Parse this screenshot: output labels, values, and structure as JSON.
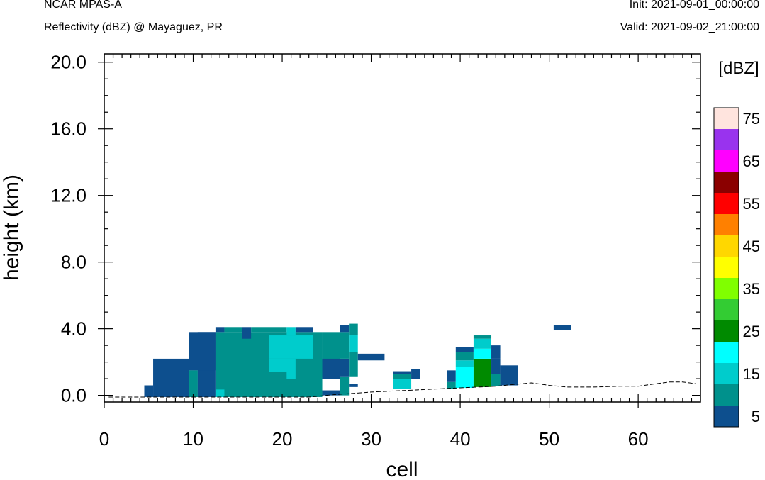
{
  "header": {
    "left_line1": "NCAR MPAS-A",
    "left_line2": "Reflectivity (dBZ) @ Mayaguez, PR",
    "right_line1": "Init: 2021-09-01_00:00:00",
    "right_line2": "Valid: 2021-09-02_21:00:00"
  },
  "chart_data": {
    "type": "heatmap",
    "xlabel": "cell",
    "ylabel": "height (km)",
    "xlim": [
      0,
      67
    ],
    "ylim": [
      -0.4,
      20.5
    ],
    "x_ticks": [
      0,
      10,
      20,
      30,
      40,
      50,
      60
    ],
    "x_tick_labels": [
      "0",
      "10",
      "20",
      "30",
      "40",
      "50",
      "60"
    ],
    "y_ticks": [
      0,
      4,
      8,
      12,
      16,
      20
    ],
    "y_tick_labels": [
      "0.0",
      "4.0",
      "8.0",
      "12.0",
      "16.0",
      "20.0"
    ],
    "grid": false,
    "colorbar": {
      "title": "[dBZ]",
      "levels": [
        5,
        10,
        15,
        20,
        25,
        30,
        35,
        40,
        45,
        50,
        55,
        60,
        65,
        70,
        75
      ],
      "tick_labels": [
        "5",
        "15",
        "25",
        "35",
        "45",
        "55",
        "65",
        "75"
      ],
      "colors": [
        "#0d4f8e",
        "#00918c",
        "#00cccc",
        "#00ffff",
        "#008a00",
        "#33cc33",
        "#80ff00",
        "#ffff00",
        "#ffd700",
        "#ff8000",
        "#ff0000",
        "#8b0000",
        "#ff00ff",
        "#9933ee",
        "#ffe4de"
      ]
    },
    "terrain": [
      [
        0.5,
        -0.1
      ],
      [
        23,
        -0.1
      ],
      [
        26,
        0.05
      ],
      [
        28,
        0.12
      ],
      [
        30,
        0.2
      ],
      [
        32,
        0.25
      ],
      [
        34,
        0.3
      ],
      [
        36,
        0.35
      ],
      [
        38,
        0.4
      ],
      [
        40,
        0.45
      ],
      [
        42,
        0.5
      ],
      [
        44,
        0.55
      ],
      [
        46,
        0.65
      ],
      [
        48,
        0.75
      ],
      [
        50,
        0.6
      ],
      [
        52,
        0.5
      ],
      [
        55,
        0.5
      ],
      [
        58,
        0.55
      ],
      [
        60,
        0.55
      ],
      [
        62,
        0.7
      ],
      [
        63.5,
        0.8
      ],
      [
        65,
        0.8
      ],
      [
        66.5,
        0.7
      ]
    ],
    "reflectivity_cells": [
      {
        "x": [
          4.5,
          5.5
        ],
        "y": [
          -0.1,
          0.6
        ],
        "dbz": 5
      },
      {
        "x": [
          5.5,
          9.5
        ],
        "y": [
          -0.1,
          2.2
        ],
        "dbz": 5
      },
      {
        "x": [
          9.5,
          10.5
        ],
        "y": [
          -0.1,
          1.5
        ],
        "dbz": 5
      },
      {
        "x": [
          10.5,
          12.5
        ],
        "y": [
          -0.1,
          3.8
        ],
        "dbz": 5
      },
      {
        "x": [
          9.5,
          12.5
        ],
        "y": [
          1.5,
          3.8
        ],
        "dbz": 5
      },
      {
        "x": [
          12.5,
          24.5
        ],
        "y": [
          -0.1,
          3.8
        ],
        "dbz": 10
      },
      {
        "x": [
          9.5,
          10.5
        ],
        "y": [
          -0.1,
          1.5
        ],
        "dbz": 10
      },
      {
        "x": [
          12.5,
          13.5
        ],
        "y": [
          -0.1,
          0.35
        ],
        "dbz": 15
      },
      {
        "x": [
          12.5,
          13.5
        ],
        "y": [
          3.8,
          4.1
        ],
        "dbz": 5
      },
      {
        "x": [
          13.5,
          15.5
        ],
        "y": [
          3.8,
          4.1
        ],
        "dbz": 10
      },
      {
        "x": [
          15.5,
          16.5
        ],
        "y": [
          3.4,
          4.1
        ],
        "dbz": 5
      },
      {
        "x": [
          16.5,
          20.5
        ],
        "y": [
          3.8,
          4.1
        ],
        "dbz": 10
      },
      {
        "x": [
          20.5,
          21.5
        ],
        "y": [
          3.6,
          4.1
        ],
        "dbz": 15
      },
      {
        "x": [
          21.5,
          23.5
        ],
        "y": [
          3.8,
          4.1
        ],
        "dbz": 5
      },
      {
        "x": [
          18.5,
          23.5
        ],
        "y": [
          2.2,
          3.6
        ],
        "dbz": 15
      },
      {
        "x": [
          18.5,
          21.5
        ],
        "y": [
          1.4,
          2.2
        ],
        "dbz": 15
      },
      {
        "x": [
          20.5,
          21.5
        ],
        "y": [
          1.0,
          1.4
        ],
        "dbz": 15
      },
      {
        "x": [
          24.5,
          26.5
        ],
        "y": [
          1.1,
          3.8
        ],
        "dbz": 10
      },
      {
        "x": [
          24.5,
          26.5
        ],
        "y": [
          0.0,
          0.3
        ],
        "dbz": 5
      },
      {
        "x": [
          24.5,
          26.5
        ],
        "y": [
          1.0,
          2.2
        ],
        "dbz": 5
      },
      {
        "x": [
          26.5,
          27.5
        ],
        "y": [
          0.0,
          1.1
        ],
        "dbz": 10
      },
      {
        "x": [
          26.5,
          27.5
        ],
        "y": [
          1.1,
          2.2
        ],
        "dbz": 5
      },
      {
        "x": [
          26.5,
          27.5
        ],
        "y": [
          2.2,
          3.8
        ],
        "dbz": 10
      },
      {
        "x": [
          26.5,
          27.5
        ],
        "y": [
          3.8,
          4.2
        ],
        "dbz": 5
      },
      {
        "x": [
          27.5,
          28.5
        ],
        "y": [
          0.5,
          0.7
        ],
        "dbz": 5
      },
      {
        "x": [
          27.5,
          28.5
        ],
        "y": [
          1.1,
          2.6
        ],
        "dbz": 10
      },
      {
        "x": [
          27.5,
          28.5
        ],
        "y": [
          2.6,
          3.6
        ],
        "dbz": 15
      },
      {
        "x": [
          27.5,
          28.5
        ],
        "y": [
          3.6,
          4.3
        ],
        "dbz": 10
      },
      {
        "x": [
          28.5,
          31.5
        ],
        "y": [
          2.1,
          2.5
        ],
        "dbz": 5
      },
      {
        "x": [
          32.5,
          34.5
        ],
        "y": [
          0.4,
          1.0
        ],
        "dbz": 15
      },
      {
        "x": [
          32.5,
          34.5
        ],
        "y": [
          1.0,
          1.3
        ],
        "dbz": 10
      },
      {
        "x": [
          32.5,
          34.5
        ],
        "y": [
          1.3,
          1.45
        ],
        "dbz": 5
      },
      {
        "x": [
          34.5,
          35.5
        ],
        "y": [
          1.0,
          1.6
        ],
        "dbz": 5
      },
      {
        "x": [
          38.5,
          39.5
        ],
        "y": [
          0.4,
          0.8
        ],
        "dbz": 10
      },
      {
        "x": [
          38.5,
          39.5
        ],
        "y": [
          0.8,
          1.5
        ],
        "dbz": 5
      },
      {
        "x": [
          39.5,
          41.5
        ],
        "y": [
          0.45,
          1.7
        ],
        "dbz": 20
      },
      {
        "x": [
          39.5,
          41.5
        ],
        "y": [
          1.7,
          2.1
        ],
        "dbz": 15
      },
      {
        "x": [
          39.5,
          41.5
        ],
        "y": [
          2.1,
          2.6
        ],
        "dbz": 10
      },
      {
        "x": [
          39.5,
          41.5
        ],
        "y": [
          2.6,
          2.9
        ],
        "dbz": 5
      },
      {
        "x": [
          41.5,
          43.5
        ],
        "y": [
          0.5,
          2.2
        ],
        "dbz": 25
      },
      {
        "x": [
          41.5,
          43.5
        ],
        "y": [
          2.2,
          2.8
        ],
        "dbz": 20
      },
      {
        "x": [
          41.5,
          43.5
        ],
        "y": [
          2.8,
          3.4
        ],
        "dbz": 15
      },
      {
        "x": [
          41.5,
          43.5
        ],
        "y": [
          3.4,
          3.6
        ],
        "dbz": 10
      },
      {
        "x": [
          43.5,
          44.5
        ],
        "y": [
          0.55,
          1.3
        ],
        "dbz": 10
      },
      {
        "x": [
          43.5,
          44.5
        ],
        "y": [
          1.3,
          2.2
        ],
        "dbz": 5
      },
      {
        "x": [
          43.5,
          44.5
        ],
        "y": [
          2.2,
          3.0
        ],
        "dbz": 5
      },
      {
        "x": [
          44.5,
          46.5
        ],
        "y": [
          0.6,
          1.8
        ],
        "dbz": 5
      },
      {
        "x": [
          50.5,
          52.5
        ],
        "y": [
          3.9,
          4.2
        ],
        "dbz": 5
      }
    ]
  }
}
